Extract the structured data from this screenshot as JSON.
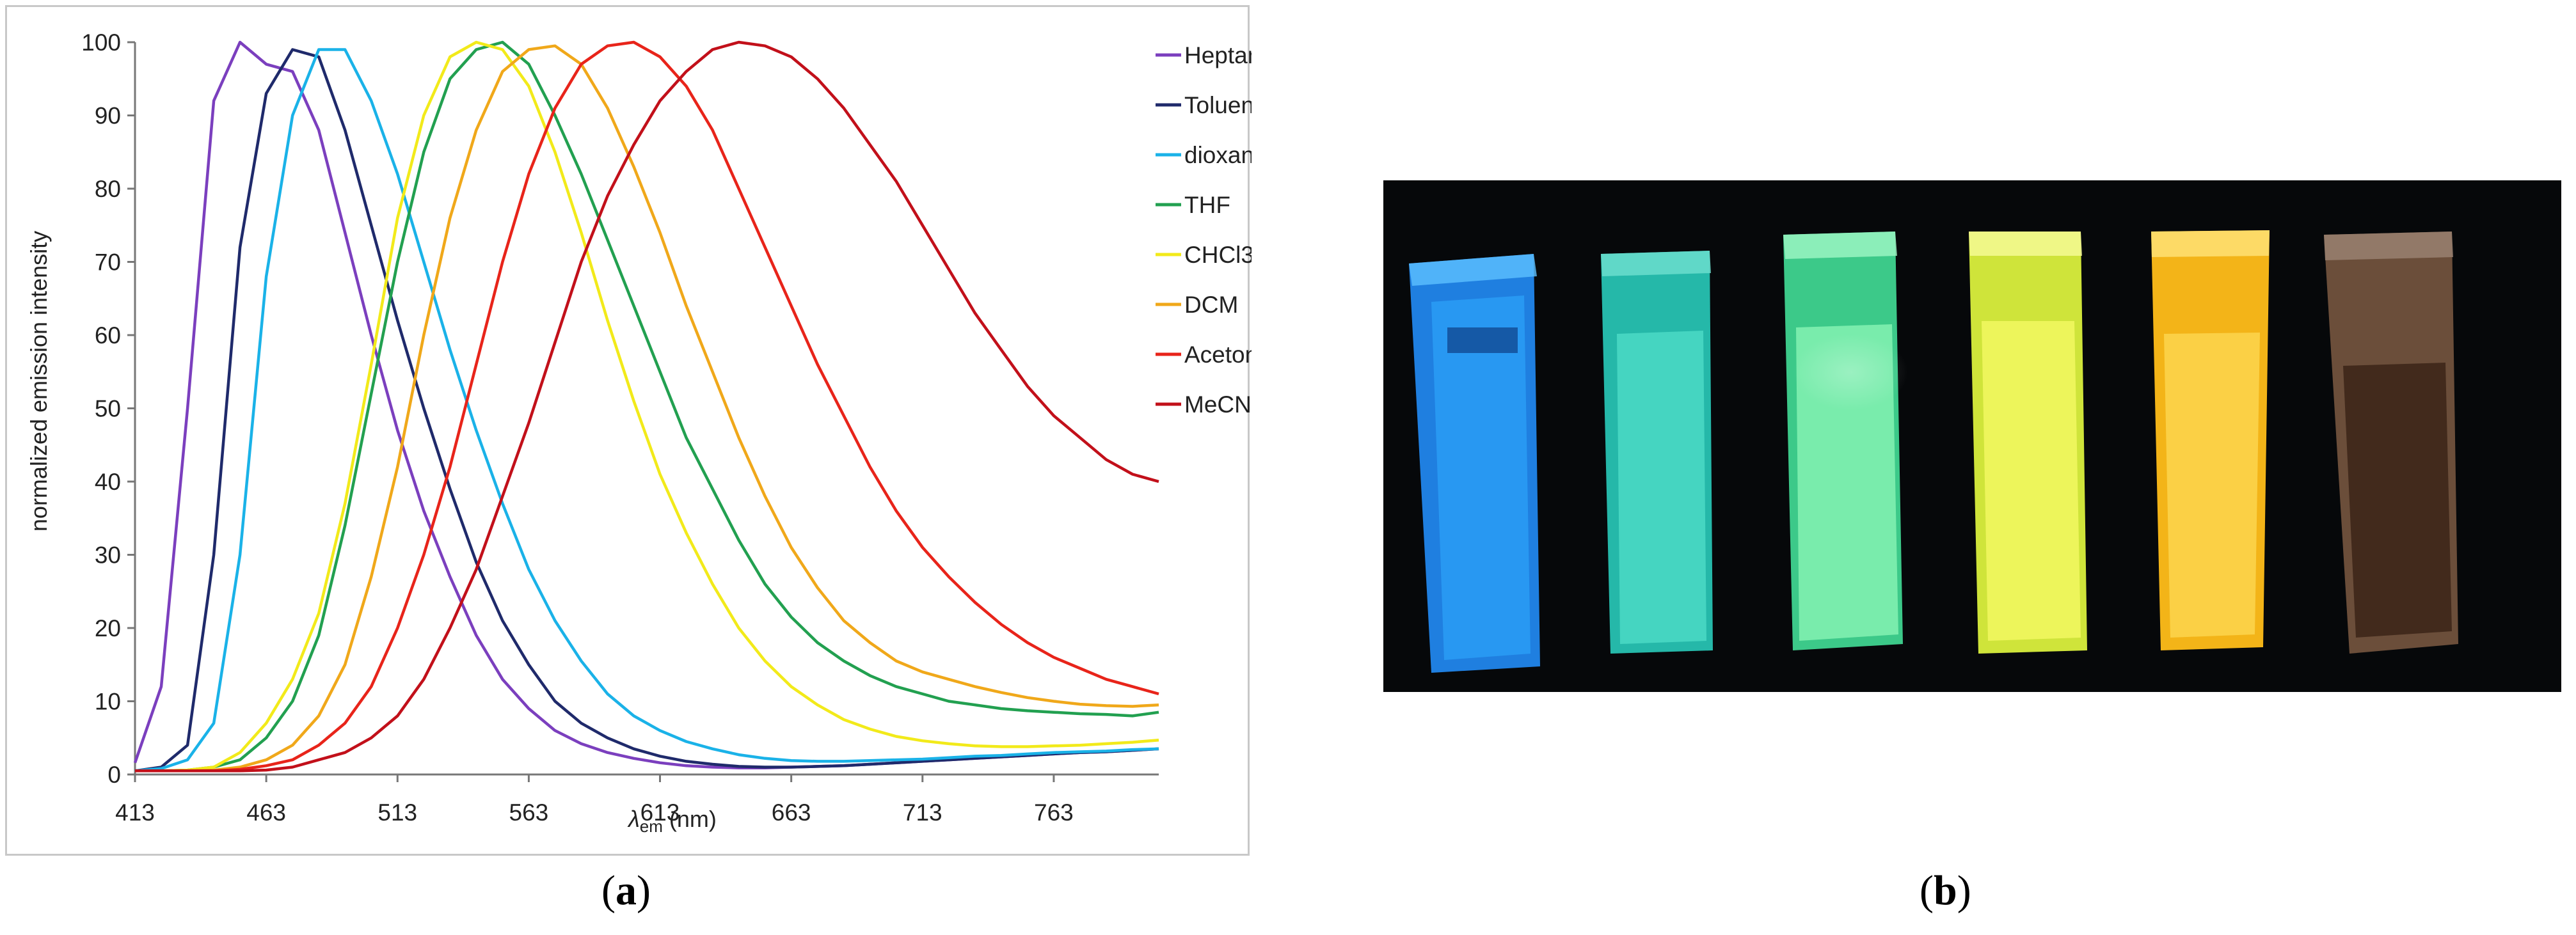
{
  "captions": {
    "a_open": "(",
    "a_letter": "a",
    "a_close": ")",
    "b_open": "(",
    "b_letter": "b",
    "b_close": ")"
  },
  "chart_data": {
    "type": "line",
    "title": "",
    "xlabel_symbol": "λ",
    "xlabel_sub": "em",
    "xlabel_unit": " (nm)",
    "ylabel": "normalized emission intensity",
    "xlim": [
      413,
      803
    ],
    "ylim": [
      0,
      100
    ],
    "xticks": [
      413,
      463,
      513,
      563,
      613,
      663,
      713,
      763
    ],
    "yticks": [
      0,
      10,
      20,
      30,
      40,
      50,
      60,
      70,
      80,
      90,
      100
    ],
    "grid": false,
    "legend_position": "top-right",
    "x": [
      413,
      423,
      433,
      443,
      453,
      463,
      473,
      483,
      493,
      503,
      513,
      523,
      533,
      543,
      553,
      563,
      573,
      583,
      593,
      603,
      613,
      623,
      633,
      643,
      653,
      663,
      673,
      683,
      693,
      703,
      713,
      723,
      733,
      743,
      753,
      763,
      773,
      783,
      793,
      803
    ],
    "series": [
      {
        "name": "Heptane",
        "color": "#7b3fbe",
        "values": [
          1.6,
          12,
          50,
          92,
          100,
          97,
          96,
          88,
          74,
          60,
          47,
          36,
          27,
          19,
          13,
          9,
          6,
          4.2,
          3,
          2.2,
          1.6,
          1.2,
          1,
          0.9,
          0.9,
          1,
          1.1,
          1.2,
          1.4,
          1.6,
          1.8,
          2,
          2.2,
          2.4,
          2.6,
          2.8,
          3,
          3.1,
          3.3,
          3.5
        ]
      },
      {
        "name": "Toluene",
        "color": "#1f2a6b",
        "values": [
          0.5,
          1,
          4,
          30,
          72,
          93,
          99,
          98,
          88,
          75,
          62,
          50,
          39,
          29,
          21,
          15,
          10,
          7,
          5,
          3.5,
          2.5,
          1.8,
          1.4,
          1.1,
          1,
          1,
          1.1,
          1.2,
          1.4,
          1.6,
          1.8,
          2,
          2.2,
          2.4,
          2.6,
          2.8,
          3,
          3.1,
          3.3,
          3.5
        ]
      },
      {
        "name": "dioxane",
        "color": "#1ab2e8",
        "values": [
          0.5,
          0.8,
          2,
          7,
          30,
          68,
          90,
          99,
          99,
          92,
          82,
          70,
          58,
          47,
          37,
          28,
          21,
          15.5,
          11,
          8,
          6,
          4.5,
          3.5,
          2.7,
          2.2,
          1.9,
          1.8,
          1.8,
          1.9,
          2,
          2.1,
          2.3,
          2.5,
          2.6,
          2.8,
          3,
          3.1,
          3.2,
          3.4,
          3.5
        ]
      },
      {
        "name": "THF",
        "color": "#22a050",
        "values": [
          0.5,
          0.5,
          0.6,
          1,
          2,
          5,
          10,
          19,
          34,
          52,
          70,
          85,
          95,
          99,
          100,
          97,
          90,
          82,
          73,
          64,
          55,
          46,
          39,
          32,
          26,
          21.5,
          18,
          15.5,
          13.5,
          12,
          11,
          10,
          9.5,
          9,
          8.7,
          8.5,
          8.3,
          8.2,
          8,
          8.5
        ]
      },
      {
        "name": "CHCl3",
        "color": "#f2ea1a",
        "values": [
          0.5,
          0.5,
          0.6,
          1,
          3,
          7,
          13,
          22,
          37,
          56,
          76,
          90,
          98,
          100,
          99,
          94,
          85,
          74,
          62,
          51,
          41,
          33,
          26,
          20,
          15.5,
          12,
          9.5,
          7.5,
          6.2,
          5.2,
          4.6,
          4.2,
          3.9,
          3.8,
          3.8,
          3.9,
          4,
          4.2,
          4.4,
          4.7
        ]
      },
      {
        "name": "DCM",
        "color": "#f0a81a",
        "values": [
          0.5,
          0.5,
          0.5,
          0.6,
          1,
          2,
          4,
          8,
          15,
          27,
          42,
          60,
          76,
          88,
          96,
          99,
          99.5,
          97,
          91,
          83,
          74,
          64,
          55,
          46,
          38,
          31,
          25.5,
          21,
          18,
          15.5,
          14,
          13,
          12,
          11.2,
          10.5,
          10,
          9.6,
          9.4,
          9.3,
          9.5
        ]
      },
      {
        "name": "Acetone",
        "color": "#e8241a",
        "values": [
          0.5,
          0.5,
          0.5,
          0.5,
          0.7,
          1.2,
          2,
          4,
          7,
          12,
          20,
          30,
          42,
          56,
          70,
          82,
          91,
          97,
          99.5,
          100,
          98,
          94,
          88,
          80,
          72,
          64,
          56,
          49,
          42,
          36,
          31,
          27,
          23.5,
          20.5,
          18,
          16,
          14.5,
          13,
          12,
          11
        ]
      },
      {
        "name": "MeCN",
        "color": "#c2101a",
        "values": [
          0.5,
          0.5,
          0.5,
          0.5,
          0.5,
          0.6,
          1,
          2,
          3,
          5,
          8,
          13,
          20,
          28,
          38,
          48,
          59,
          70,
          79,
          86,
          92,
          96,
          99,
          100,
          99.5,
          98,
          95,
          91,
          86,
          81,
          75,
          69,
          63,
          58,
          53,
          49,
          46,
          43,
          41,
          40
        ]
      }
    ]
  }
}
